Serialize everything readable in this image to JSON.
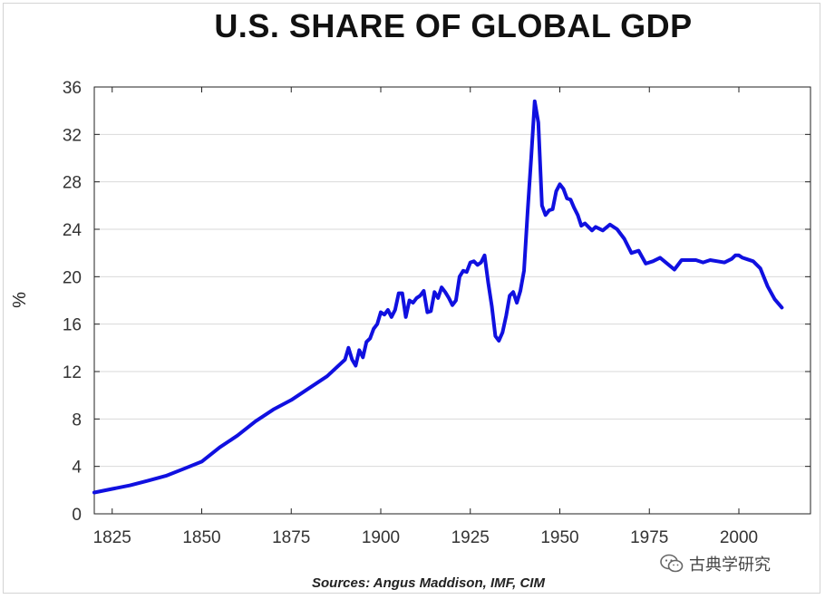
{
  "chart_data": {
    "type": "line",
    "title": "U.S. SHARE OF GLOBAL GDP",
    "xlabel": "",
    "ylabel": "%",
    "xlim": [
      1820,
      2020
    ],
    "ylim": [
      0,
      36
    ],
    "x_ticks": [
      1825,
      1850,
      1875,
      1900,
      1925,
      1950,
      1975,
      2000
    ],
    "y_ticks": [
      0,
      4,
      8,
      12,
      16,
      20,
      24,
      28,
      32,
      36
    ],
    "grid": true,
    "legend": "none",
    "series_color": "#1010e0",
    "series": [
      {
        "x": [
          1820,
          1825,
          1830,
          1835,
          1840,
          1845,
          1850,
          1855,
          1860,
          1865,
          1870,
          1875,
          1880,
          1885,
          1890,
          1891,
          1892,
          1893,
          1894,
          1895,
          1896,
          1897,
          1898,
          1899,
          1900,
          1901,
          1902,
          1903,
          1904,
          1905,
          1906,
          1907,
          1908,
          1909,
          1910,
          1911,
          1912,
          1913,
          1914,
          1915,
          1916,
          1917,
          1918,
          1919,
          1920,
          1921,
          1922,
          1923,
          1924,
          1925,
          1926,
          1927,
          1928,
          1929,
          1930,
          1931,
          1932,
          1933,
          1934,
          1935,
          1936,
          1937,
          1938,
          1939,
          1940,
          1941,
          1942,
          1943,
          1944,
          1945,
          1946,
          1947,
          1948,
          1949,
          1950,
          1951,
          1952,
          1953,
          1954,
          1955,
          1956,
          1957,
          1958,
          1959,
          1960,
          1962,
          1964,
          1966,
          1968,
          1970,
          1972,
          1974,
          1976,
          1978,
          1980,
          1982,
          1984,
          1986,
          1988,
          1990,
          1992,
          1994,
          1996,
          1998,
          1999,
          2000,
          2001,
          2002,
          2004,
          2006,
          2008,
          2010,
          2012
        ],
        "y": [
          1.8,
          2.1,
          2.4,
          2.8,
          3.2,
          3.8,
          4.4,
          5.6,
          6.6,
          7.8,
          8.8,
          9.6,
          10.6,
          11.6,
          13.0,
          14.0,
          13.0,
          12.5,
          13.8,
          13.2,
          14.5,
          14.8,
          15.6,
          16.0,
          17.0,
          16.8,
          17.2,
          16.6,
          17.2,
          18.6,
          18.6,
          16.6,
          18.0,
          17.8,
          18.2,
          18.4,
          18.8,
          17.0,
          17.1,
          18.7,
          18.2,
          19.1,
          18.7,
          18.2,
          17.6,
          18.0,
          20.0,
          20.5,
          20.4,
          21.2,
          21.3,
          21.0,
          21.2,
          21.8,
          19.5,
          17.5,
          15.0,
          14.6,
          15.3,
          16.7,
          18.4,
          18.7,
          17.8,
          18.8,
          20.5,
          25.5,
          30.0,
          34.8,
          33.0,
          26.0,
          25.2,
          25.6,
          25.7,
          27.2,
          27.8,
          27.4,
          26.6,
          26.5,
          25.8,
          25.2,
          24.3,
          24.5,
          24.2,
          23.9,
          24.2,
          23.9,
          24.4,
          24.0,
          23.2,
          22.0,
          22.2,
          21.1,
          21.3,
          21.6,
          21.1,
          20.6,
          21.4,
          21.4,
          21.4,
          21.2,
          21.4,
          21.3,
          21.2,
          21.5,
          21.8,
          21.8,
          21.6,
          21.5,
          21.3,
          20.7,
          19.2,
          18.1,
          17.4
        ]
      }
    ]
  },
  "source_text": "Sources:  Angus Maddison, IMF, CIM",
  "watermark_text": "古典学研究",
  "watermark_icon": "wechat-icon"
}
